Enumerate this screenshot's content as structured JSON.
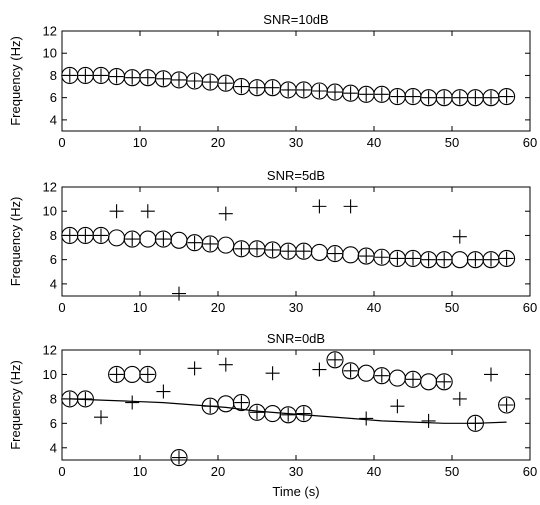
{
  "chart_data": [
    {
      "type": "scatter",
      "title": "SNR=10dB",
      "xlabel": "",
      "ylabel": "Frequency (Hz)",
      "xlim": [
        0,
        60
      ],
      "ylim": [
        3,
        12
      ],
      "xticks": [
        "0",
        "10",
        "20",
        "30",
        "40",
        "50",
        "60"
      ],
      "yticks": [
        "4",
        "6",
        "8",
        "10",
        "12"
      ],
      "grid": false,
      "series": [
        {
          "marker": "circle",
          "x": [
            1,
            3,
            5,
            7,
            9,
            11,
            13,
            15,
            17,
            19,
            21,
            23,
            25,
            27,
            29,
            31,
            33,
            35,
            37,
            39,
            41,
            43,
            45,
            47,
            49,
            51,
            53,
            55,
            57
          ],
          "y": [
            8.0,
            8.0,
            8.0,
            7.9,
            7.8,
            7.8,
            7.7,
            7.6,
            7.5,
            7.4,
            7.3,
            7.0,
            6.9,
            6.9,
            6.7,
            6.7,
            6.6,
            6.5,
            6.4,
            6.3,
            6.3,
            6.1,
            6.1,
            6.0,
            6.0,
            6.0,
            6.0,
            6.0,
            6.1
          ]
        },
        {
          "marker": "plus",
          "x": [
            1,
            3,
            5,
            7,
            9,
            11,
            13,
            15,
            17,
            19,
            21,
            23,
            25,
            27,
            29,
            31,
            33,
            35,
            37,
            39,
            41,
            43,
            45,
            47,
            49,
            51,
            53,
            55,
            57
          ],
          "y": [
            8.0,
            8.0,
            8.0,
            7.9,
            7.8,
            7.8,
            7.7,
            7.6,
            7.5,
            7.4,
            7.3,
            7.0,
            6.9,
            6.9,
            6.7,
            6.7,
            6.6,
            6.5,
            6.4,
            6.3,
            6.3,
            6.1,
            6.1,
            6.0,
            6.0,
            6.0,
            6.0,
            6.0,
            6.1
          ]
        }
      ]
    },
    {
      "type": "scatter",
      "title": "SNR=5dB",
      "xlabel": "",
      "ylabel": "Frequency (Hz)",
      "xlim": [
        0,
        60
      ],
      "ylim": [
        3,
        12
      ],
      "xticks": [
        "0",
        "10",
        "20",
        "30",
        "40",
        "50",
        "60"
      ],
      "yticks": [
        "4",
        "6",
        "8",
        "10",
        "12"
      ],
      "grid": false,
      "series": [
        {
          "marker": "circle",
          "x": [
            1,
            3,
            5,
            7,
            9,
            11,
            13,
            15,
            17,
            19,
            21,
            23,
            25,
            27,
            29,
            31,
            33,
            35,
            37,
            39,
            41,
            43,
            45,
            47,
            49,
            51,
            53,
            55,
            57
          ],
          "y": [
            8.0,
            8.0,
            8.0,
            7.8,
            7.7,
            7.7,
            7.7,
            7.6,
            7.4,
            7.3,
            7.2,
            6.9,
            6.9,
            6.8,
            6.7,
            6.7,
            6.6,
            6.5,
            6.4,
            6.3,
            6.2,
            6.1,
            6.1,
            6.0,
            6.0,
            6.0,
            6.0,
            6.0,
            6.1
          ]
        },
        {
          "marker": "plus",
          "x": [
            1,
            3,
            5,
            7,
            9,
            11,
            13,
            15,
            17,
            19,
            21,
            23,
            25,
            27,
            29,
            31,
            33,
            35,
            37,
            39,
            41,
            43,
            45,
            47,
            49,
            51,
            53,
            55,
            57
          ],
          "y": [
            8.0,
            8.0,
            8.0,
            10.0,
            7.7,
            10.0,
            7.7,
            3.2,
            7.4,
            7.3,
            9.8,
            6.9,
            6.9,
            6.8,
            6.7,
            6.7,
            10.4,
            6.5,
            10.4,
            6.3,
            6.2,
            6.1,
            6.1,
            6.0,
            6.0,
            7.9,
            6.0,
            6.0,
            6.1
          ]
        }
      ]
    },
    {
      "type": "scatter",
      "title": "SNR=0dB",
      "xlabel": "Time (s)",
      "ylabel": "Frequency (Hz)",
      "xlim": [
        0,
        60
      ],
      "ylim": [
        3,
        12
      ],
      "xticks": [
        "0",
        "10",
        "20",
        "30",
        "40",
        "50",
        "60"
      ],
      "yticks": [
        "4",
        "6",
        "8",
        "10",
        "12"
      ],
      "grid": false,
      "series": [
        {
          "marker": "circle",
          "x": [
            1,
            3,
            7,
            9,
            11,
            15,
            19,
            21,
            23,
            25,
            27,
            29,
            31,
            35,
            37,
            39,
            41,
            43,
            45,
            47,
            49,
            53,
            57
          ],
          "y": [
            8.0,
            8.0,
            10.0,
            10.0,
            10.0,
            3.2,
            7.4,
            7.6,
            7.7,
            6.9,
            6.8,
            6.7,
            6.8,
            11.2,
            10.3,
            10.1,
            9.9,
            9.7,
            9.6,
            9.4,
            9.4,
            6.0,
            7.5
          ]
        },
        {
          "marker": "plus",
          "x": [
            1,
            3,
            5,
            7,
            9,
            11,
            13,
            15,
            17,
            19,
            21,
            23,
            25,
            27,
            29,
            31,
            33,
            35,
            37,
            39,
            41,
            43,
            45,
            47,
            49,
            51,
            53,
            55,
            57
          ],
          "y": [
            8.0,
            8.0,
            6.5,
            10.0,
            7.7,
            10.0,
            8.6,
            3.2,
            10.5,
            7.4,
            10.8,
            7.7,
            6.9,
            10.1,
            6.7,
            6.8,
            10.4,
            11.2,
            10.3,
            6.4,
            9.9,
            7.4,
            9.6,
            6.2,
            9.4,
            8.0,
            6.0,
            10.0,
            7.5
          ]
        },
        {
          "marker": "line",
          "x": [
            1,
            5,
            9,
            13,
            17,
            21,
            25,
            29,
            33,
            37,
            41,
            45,
            49,
            53,
            57
          ],
          "y": [
            8.0,
            7.9,
            7.8,
            7.7,
            7.5,
            7.3,
            7.0,
            6.8,
            6.6,
            6.4,
            6.2,
            6.1,
            6.0,
            6.0,
            6.1
          ]
        }
      ]
    }
  ]
}
